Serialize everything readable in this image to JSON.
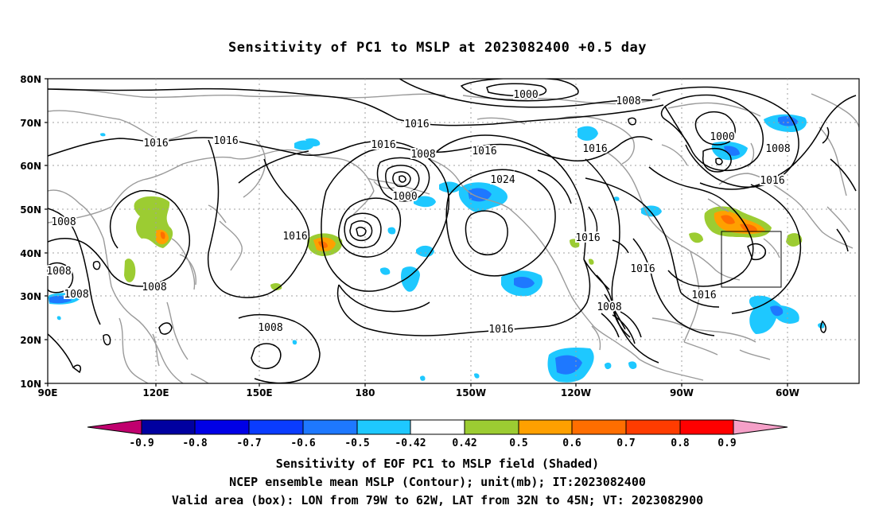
{
  "title": "Sensitivity of PC1 to MSLP at 2023082400 +0.5 day",
  "axes": {
    "lat_labels": [
      "80N",
      "70N",
      "60N",
      "50N",
      "40N",
      "30N",
      "20N",
      "10N"
    ],
    "lon_labels": [
      "90E",
      "120E",
      "150E",
      "180",
      "150W",
      "120W",
      "90W",
      "60W"
    ]
  },
  "contour_labels": [
    "1000",
    "1008",
    "1016",
    "1016",
    "1016",
    "1008",
    "1016",
    "1024",
    "1016",
    "1000",
    "1008",
    "1016",
    "1016",
    "1008",
    "1008",
    "1016",
    "1016",
    "1016",
    "1016",
    "1008",
    "1008",
    "1008",
    "1016",
    "1000",
    "1008",
    "1008"
  ],
  "valid_box": {
    "lon_from": "79W",
    "lon_to": "62W",
    "lat_from": "32N",
    "lat_to": "45N"
  },
  "colorbar": {
    "labels": [
      "-0.9",
      "-0.8",
      "-0.7",
      "-0.6",
      "-0.5",
      "-0.42",
      "0.42",
      "0.5",
      "0.6",
      "0.7",
      "0.8",
      "0.9"
    ],
    "colors": [
      "#c0006e",
      "#0000a0",
      "#0000e6",
      "#0a3cff",
      "#1e78ff",
      "#1ec8ff",
      "#ffffff",
      "#9ccc32",
      "#ffa000",
      "#ff6e00",
      "#ff3c00",
      "#ff0000",
      "#f5a0c8"
    ]
  },
  "shading_colors": {
    "neg_light": "#1ec8ff",
    "neg_mid": "#1e78ff",
    "neg_dark": "#0a3cff",
    "pos_green": "#9ccc32",
    "pos_orange": "#ffa000",
    "pos_dorange": "#ff6e00"
  },
  "captions": [
    "Sensitivity of EOF PC1 to MSLP field (Shaded)",
    "NCEP ensemble mean MSLP (Contour); unit(mb); IT:2023082400",
    "Valid area (box): LON from 79W to 62W, LAT from 32N to 45N; VT: 2023082900"
  ]
}
